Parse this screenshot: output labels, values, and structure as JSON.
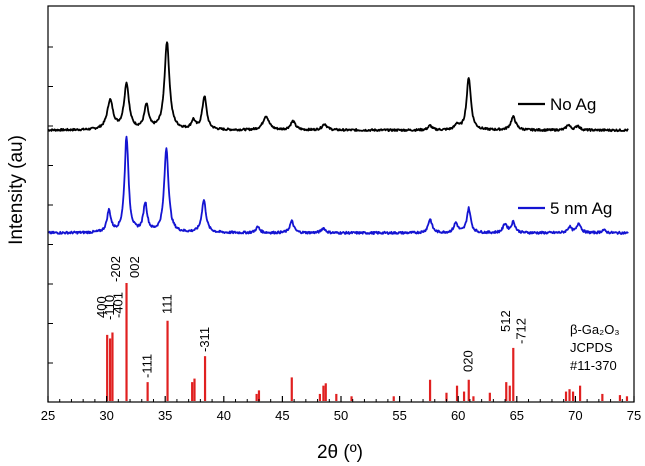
{
  "chart_data": {
    "type": "line",
    "xlabel": "2θ (º)",
    "ylabel": "Intensity (au)",
    "xlim": [
      25,
      75
    ],
    "x_ticks": [
      25,
      30,
      35,
      40,
      45,
      50,
      55,
      60,
      65,
      70,
      75
    ],
    "y_ticks_shown": false,
    "legend": [
      {
        "label": "No Ag",
        "color": "#000000"
      },
      {
        "label": "5 nm Ag",
        "color": "#1414d2"
      }
    ],
    "reference": {
      "label_lines": [
        "β-Ga₂O₃",
        "JCPDS",
        "#11-370"
      ],
      "color": "#e02020",
      "sticks": [
        {
          "x": 30.05,
          "intensity": 0.56
        },
        {
          "x": 30.3,
          "intensity": 0.53
        },
        {
          "x": 30.5,
          "intensity": 0.58
        },
        {
          "x": 31.7,
          "intensity": 1.0
        },
        {
          "x": 33.5,
          "intensity": 0.16
        },
        {
          "x": 35.2,
          "intensity": 0.68
        },
        {
          "x": 37.3,
          "intensity": 0.16
        },
        {
          "x": 37.5,
          "intensity": 0.19
        },
        {
          "x": 38.4,
          "intensity": 0.38
        },
        {
          "x": 42.8,
          "intensity": 0.06
        },
        {
          "x": 43.0,
          "intensity": 0.09
        },
        {
          "x": 45.8,
          "intensity": 0.2
        },
        {
          "x": 48.2,
          "intensity": 0.06
        },
        {
          "x": 48.5,
          "intensity": 0.13
        },
        {
          "x": 48.7,
          "intensity": 0.15
        },
        {
          "x": 49.6,
          "intensity": 0.06
        },
        {
          "x": 50.9,
          "intensity": 0.04
        },
        {
          "x": 54.5,
          "intensity": 0.04
        },
        {
          "x": 57.6,
          "intensity": 0.18
        },
        {
          "x": 59.0,
          "intensity": 0.07
        },
        {
          "x": 59.9,
          "intensity": 0.13
        },
        {
          "x": 60.5,
          "intensity": 0.08
        },
        {
          "x": 60.9,
          "intensity": 0.18
        },
        {
          "x": 61.3,
          "intensity": 0.04
        },
        {
          "x": 62.7,
          "intensity": 0.07
        },
        {
          "x": 64.1,
          "intensity": 0.16
        },
        {
          "x": 64.4,
          "intensity": 0.13
        },
        {
          "x": 64.7,
          "intensity": 0.45
        },
        {
          "x": 69.2,
          "intensity": 0.08
        },
        {
          "x": 69.5,
          "intensity": 0.1
        },
        {
          "x": 69.8,
          "intensity": 0.08
        },
        {
          "x": 70.4,
          "intensity": 0.13
        },
        {
          "x": 72.3,
          "intensity": 0.06
        },
        {
          "x": 73.8,
          "intensity": 0.05
        },
        {
          "x": 74.4,
          "intensity": 0.04
        }
      ],
      "peak_labels": [
        {
          "text": "400",
          "x": 30.05
        },
        {
          "text": "-110",
          "x": 30.3
        },
        {
          "text": "-401",
          "x": 30.5
        },
        {
          "text": "-202",
          "x": 31.5
        },
        {
          "text": "002",
          "x": 31.9
        },
        {
          "text": "-111",
          "x": 33.5
        },
        {
          "text": "111",
          "x": 35.2
        },
        {
          "text": "-311",
          "x": 38.4
        },
        {
          "text": "020",
          "x": 60.9
        },
        {
          "text": "512",
          "x": 64.4
        },
        {
          "text": "-712",
          "x": 64.7
        }
      ]
    },
    "series": [
      {
        "name": "No Ag",
        "color": "#000000",
        "baseline": 0.02,
        "peaks": [
          {
            "x": 30.3,
            "height": 0.33,
            "width": 0.3
          },
          {
            "x": 31.7,
            "height": 0.52,
            "width": 0.25
          },
          {
            "x": 33.4,
            "height": 0.27,
            "width": 0.22
          },
          {
            "x": 35.15,
            "height": 1.0,
            "width": 0.25
          },
          {
            "x": 37.4,
            "height": 0.1,
            "width": 0.2
          },
          {
            "x": 38.35,
            "height": 0.38,
            "width": 0.22
          },
          {
            "x": 43.6,
            "height": 0.16,
            "width": 0.3
          },
          {
            "x": 45.9,
            "height": 0.1,
            "width": 0.25
          },
          {
            "x": 48.6,
            "height": 0.07,
            "width": 0.25
          },
          {
            "x": 57.6,
            "height": 0.05,
            "width": 0.2
          },
          {
            "x": 59.9,
            "height": 0.06,
            "width": 0.2
          },
          {
            "x": 60.9,
            "height": 0.6,
            "width": 0.22
          },
          {
            "x": 64.7,
            "height": 0.15,
            "width": 0.25
          },
          {
            "x": 69.4,
            "height": 0.06,
            "width": 0.2
          },
          {
            "x": 70.2,
            "height": 0.05,
            "width": 0.2
          }
        ]
      },
      {
        "name": "5 nm Ag",
        "color": "#1414d2",
        "baseline": 0.0,
        "peaks": [
          {
            "x": 30.2,
            "height": 0.22,
            "width": 0.2
          },
          {
            "x": 31.7,
            "height": 0.98,
            "width": 0.2
          },
          {
            "x": 33.3,
            "height": 0.29,
            "width": 0.2
          },
          {
            "x": 35.1,
            "height": 0.86,
            "width": 0.22
          },
          {
            "x": 38.3,
            "height": 0.33,
            "width": 0.22
          },
          {
            "x": 42.9,
            "height": 0.06,
            "width": 0.2
          },
          {
            "x": 45.8,
            "height": 0.12,
            "width": 0.2
          },
          {
            "x": 48.5,
            "height": 0.05,
            "width": 0.2
          },
          {
            "x": 57.6,
            "height": 0.14,
            "width": 0.2
          },
          {
            "x": 59.8,
            "height": 0.1,
            "width": 0.2
          },
          {
            "x": 60.9,
            "height": 0.25,
            "width": 0.2
          },
          {
            "x": 64.0,
            "height": 0.09,
            "width": 0.2
          },
          {
            "x": 64.7,
            "height": 0.11,
            "width": 0.2
          },
          {
            "x": 69.5,
            "height": 0.06,
            "width": 0.2
          },
          {
            "x": 70.3,
            "height": 0.1,
            "width": 0.2
          },
          {
            "x": 72.4,
            "height": 0.03,
            "width": 0.2
          }
        ]
      }
    ]
  }
}
